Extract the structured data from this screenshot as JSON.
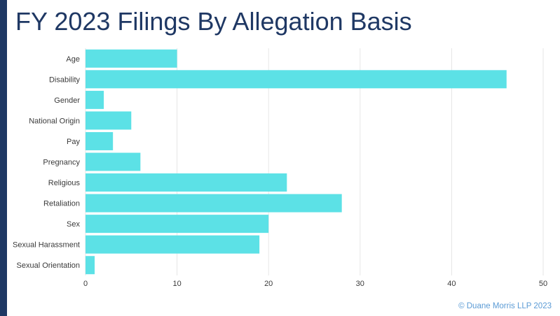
{
  "title": "FY 2023 Filings By Allegation Basis",
  "footer": "© Duane Morris LLP 2023",
  "colors": {
    "bar": "#5ce1e6",
    "title": "#1f3864",
    "accent_band": "#1f3864",
    "grid": "#e6e6e6",
    "axis_text": "#3a3a3a",
    "footer": "#5b9bd5"
  },
  "chart_data": {
    "type": "bar",
    "orientation": "horizontal",
    "categories": [
      "Age",
      "Disability",
      "Gender",
      "National Origin",
      "Pay",
      "Pregnancy",
      "Religious",
      "Retaliation",
      "Sex",
      "Sexual Harassment",
      "Sexual Orientation"
    ],
    "values": [
      10,
      46,
      2,
      5,
      3,
      6,
      22,
      28,
      20,
      19,
      1
    ],
    "title": "FY 2023 Filings By Allegation Basis",
    "xlabel": "",
    "ylabel": "",
    "xlim": [
      0,
      50
    ],
    "xticks": [
      0,
      10,
      20,
      30,
      40,
      50
    ],
    "grid": "vertical"
  }
}
